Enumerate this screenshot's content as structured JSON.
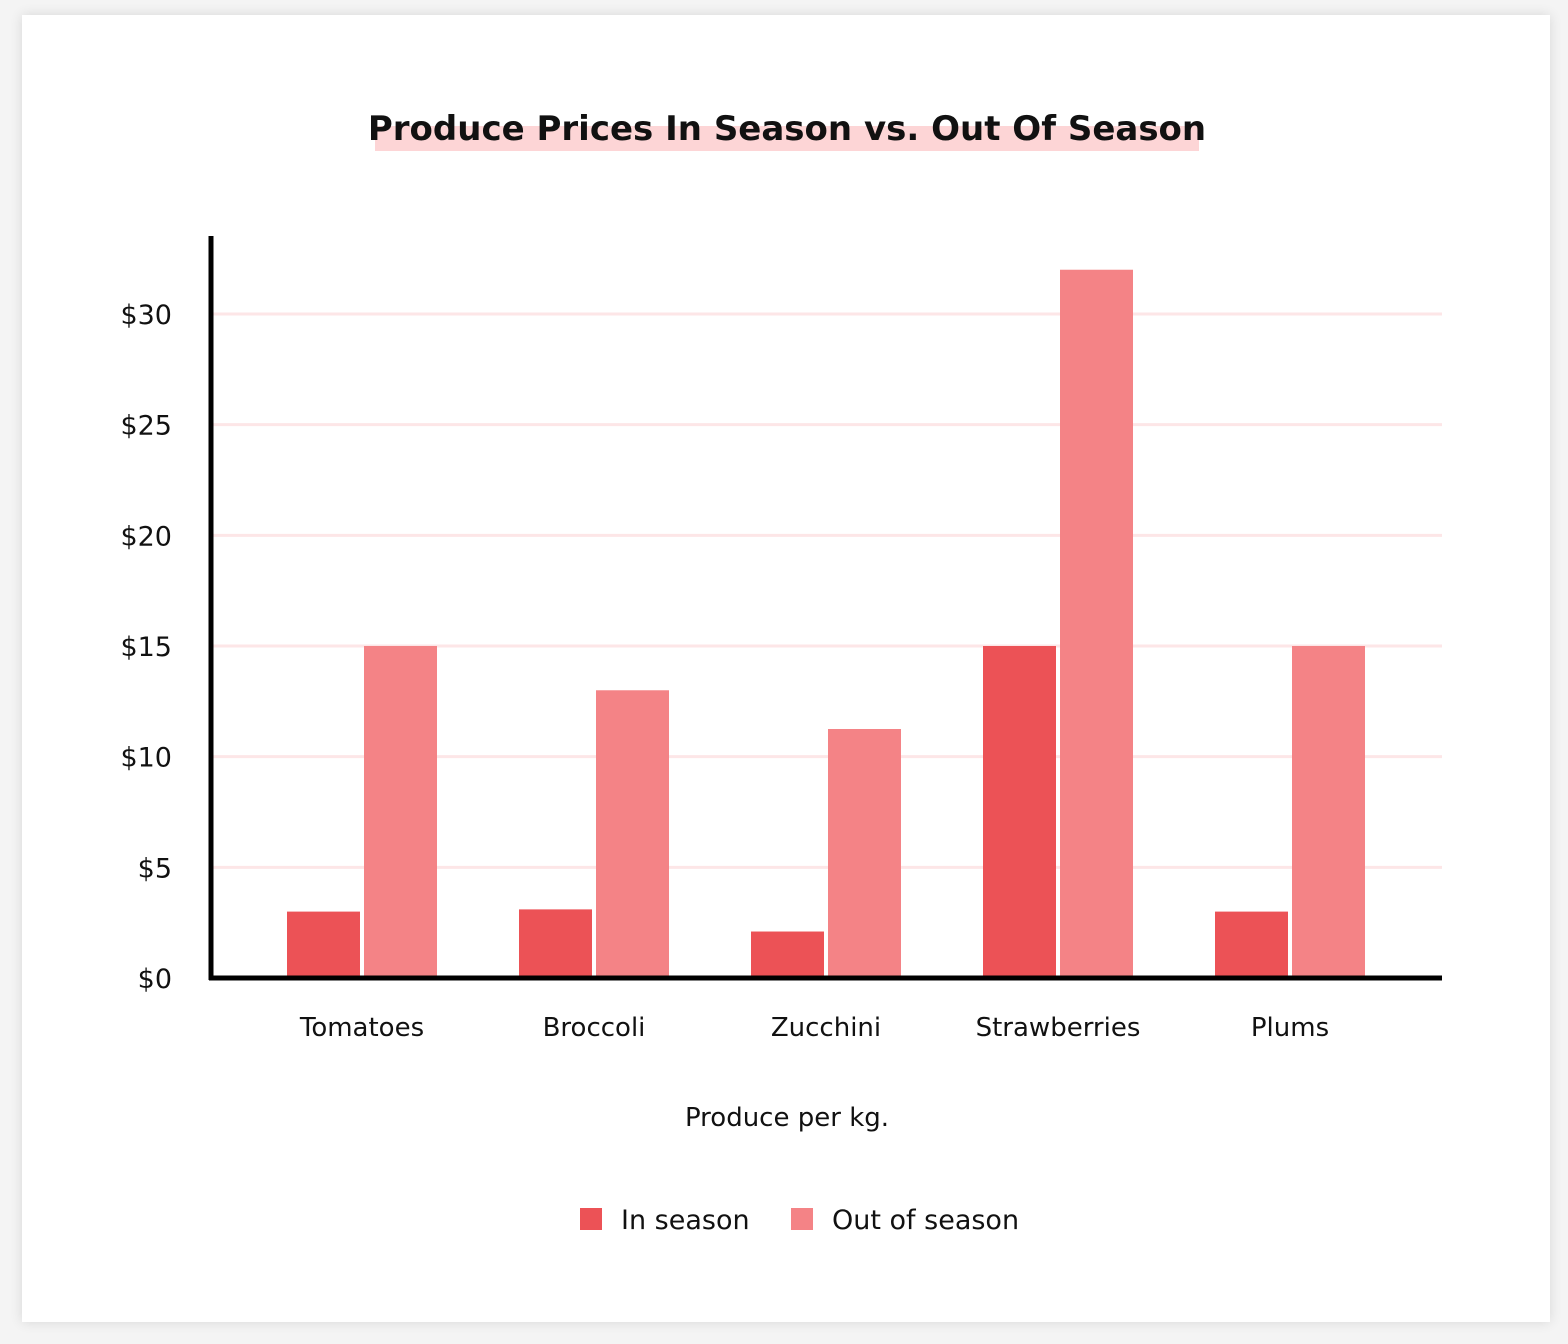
{
  "chart_data": {
    "type": "bar",
    "title": "Produce Prices In Season vs. Out Of Season",
    "xlabel": "Produce per kg.",
    "ylabel": "",
    "categories": [
      "Tomatoes",
      "Broccoli",
      "Zucchini",
      "Strawberries",
      "Plums"
    ],
    "series": [
      {
        "name": "In season",
        "values": [
          3,
          3.1,
          2.1,
          15,
          3
        ],
        "color": "#EC5256"
      },
      {
        "name": "Out of season",
        "values": [
          15,
          13,
          11.25,
          32,
          15
        ],
        "color": "#F48386"
      }
    ],
    "yticks": [
      0,
      5,
      10,
      15,
      20,
      25,
      30
    ],
    "ytick_labels": [
      "$0",
      "$5",
      "$10",
      "$15",
      "$20",
      "$25",
      "$30"
    ],
    "ylim": [
      0,
      33
    ],
    "grid": true,
    "grid_color": "#FDE6E7",
    "title_highlight_color": "#FDD5D6",
    "legend_position": "bottom"
  }
}
